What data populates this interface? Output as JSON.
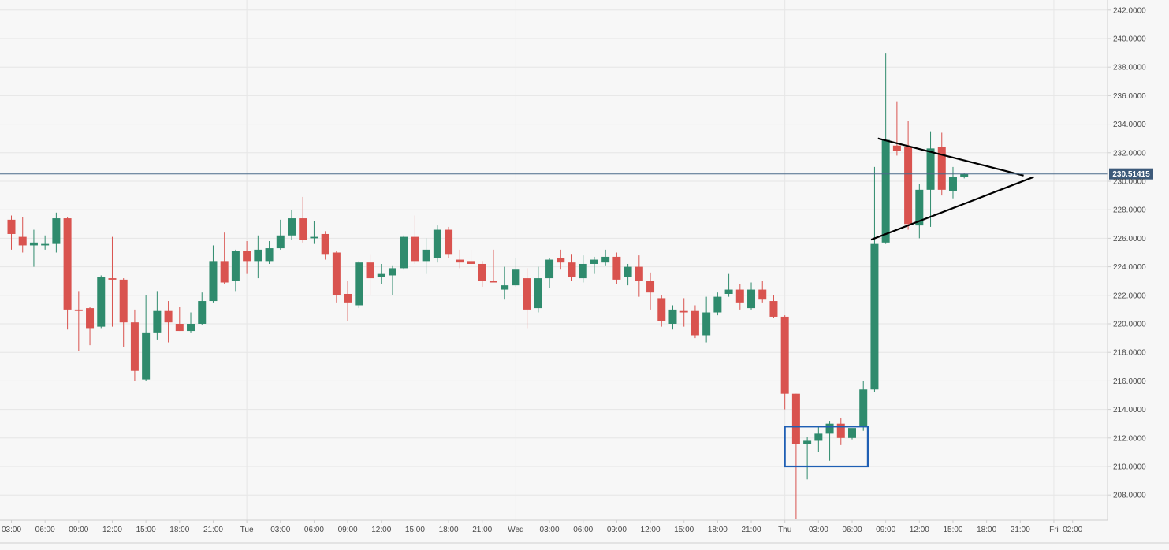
{
  "chart_data": {
    "type": "candlestick",
    "title": "",
    "xlabel": "",
    "ylabel": "",
    "ylim": [
      206.0,
      243.0
    ],
    "grid": true,
    "colors": {
      "up": "#2f8b6d",
      "down": "#d9534f",
      "background": "#f7f7f7",
      "grid": "#e6e6e6",
      "axis_text": "#4a4a4a",
      "price_line": "#4a6a8a",
      "price_label_bg": "#3d5a7a",
      "highlight_box": "#1f5fb4",
      "pattern_lines": "#000000"
    },
    "y_ticks": [
      "242.0000",
      "240.0000",
      "238.0000",
      "236.0000",
      "234.0000",
      "232.0000",
      "230.0000",
      "228.0000",
      "226.0000",
      "224.0000",
      "222.0000",
      "220.0000",
      "218.0000",
      "216.0000",
      "214.0000",
      "212.0000",
      "210.0000",
      "208.0000"
    ],
    "y_tick_values": [
      242,
      240,
      238,
      236,
      234,
      232,
      230,
      228,
      226,
      224,
      222,
      220,
      218,
      216,
      214,
      212,
      210,
      208
    ],
    "x_ticks": [
      {
        "label": "03:00",
        "idx": 0
      },
      {
        "label": "06:00",
        "idx": 3
      },
      {
        "label": "09:00",
        "idx": 6
      },
      {
        "label": "12:00",
        "idx": 9
      },
      {
        "label": "15:00",
        "idx": 12
      },
      {
        "label": "18:00",
        "idx": 15
      },
      {
        "label": "21:00",
        "idx": 18
      },
      {
        "label": "Tue",
        "idx": 21
      },
      {
        "label": "03:00",
        "idx": 24
      },
      {
        "label": "06:00",
        "idx": 27
      },
      {
        "label": "09:00",
        "idx": 30
      },
      {
        "label": "12:00",
        "idx": 33
      },
      {
        "label": "15:00",
        "idx": 36
      },
      {
        "label": "18:00",
        "idx": 39
      },
      {
        "label": "21:00",
        "idx": 42
      },
      {
        "label": "Wed",
        "idx": 45
      },
      {
        "label": "03:00",
        "idx": 48
      },
      {
        "label": "06:00",
        "idx": 51
      },
      {
        "label": "09:00",
        "idx": 54
      },
      {
        "label": "12:00",
        "idx": 57
      },
      {
        "label": "15:00",
        "idx": 60
      },
      {
        "label": "18:00",
        "idx": 63
      },
      {
        "label": "21:00",
        "idx": 66
      },
      {
        "label": "Thu",
        "idx": 69
      },
      {
        "label": "03:00",
        "idx": 72
      },
      {
        "label": "06:00",
        "idx": 75
      },
      {
        "label": "09:00",
        "idx": 78
      },
      {
        "label": "12:00",
        "idx": 81
      },
      {
        "label": "15:00",
        "idx": 84
      },
      {
        "label": "18:00",
        "idx": 87
      },
      {
        "label": "21:00",
        "idx": 90
      },
      {
        "label": "Fri",
        "idx": 93
      },
      {
        "label": "02:00",
        "idx": 94.67
      }
    ],
    "day_separators": [
      21,
      45,
      69,
      93
    ],
    "current_price": 230.51415,
    "current_price_label": "230.51415",
    "candles": [
      {
        "o": 227.3,
        "h": 227.6,
        "l": 225.2,
        "c": 226.3
      },
      {
        "o": 226.1,
        "h": 227.5,
        "l": 225.0,
        "c": 225.5
      },
      {
        "o": 225.5,
        "h": 226.6,
        "l": 224.0,
        "c": 225.7
      },
      {
        "o": 225.5,
        "h": 226.2,
        "l": 225.2,
        "c": 225.6
      },
      {
        "o": 225.6,
        "h": 227.8,
        "l": 225.0,
        "c": 227.4
      },
      {
        "o": 227.4,
        "h": 227.5,
        "l": 219.6,
        "c": 221.0
      },
      {
        "o": 221.0,
        "h": 222.3,
        "l": 218.1,
        "c": 220.9
      },
      {
        "o": 221.1,
        "h": 221.2,
        "l": 218.5,
        "c": 219.7
      },
      {
        "o": 219.8,
        "h": 223.4,
        "l": 219.7,
        "c": 223.3
      },
      {
        "o": 223.2,
        "h": 226.1,
        "l": 219.8,
        "c": 223.1
      },
      {
        "o": 223.1,
        "h": 223.2,
        "l": 218.4,
        "c": 220.1
      },
      {
        "o": 220.1,
        "h": 221.0,
        "l": 216.0,
        "c": 216.7
      },
      {
        "o": 216.1,
        "h": 222.0,
        "l": 216.0,
        "c": 219.4
      },
      {
        "o": 219.4,
        "h": 222.3,
        "l": 218.9,
        "c": 220.9
      },
      {
        "o": 220.9,
        "h": 221.6,
        "l": 218.7,
        "c": 220.1
      },
      {
        "o": 220.0,
        "h": 221.2,
        "l": 219.5,
        "c": 219.5
      },
      {
        "o": 219.5,
        "h": 220.8,
        "l": 219.4,
        "c": 220.0
      },
      {
        "o": 220.0,
        "h": 222.2,
        "l": 219.9,
        "c": 221.6
      },
      {
        "o": 221.6,
        "h": 225.5,
        "l": 221.5,
        "c": 224.4
      },
      {
        "o": 224.4,
        "h": 226.4,
        "l": 222.8,
        "c": 222.9
      },
      {
        "o": 223.0,
        "h": 225.2,
        "l": 222.3,
        "c": 225.1
      },
      {
        "o": 225.1,
        "h": 225.8,
        "l": 223.5,
        "c": 224.4
      },
      {
        "o": 224.4,
        "h": 226.2,
        "l": 223.2,
        "c": 225.2
      },
      {
        "o": 224.4,
        "h": 225.8,
        "l": 224.2,
        "c": 225.3
      },
      {
        "o": 225.3,
        "h": 227.3,
        "l": 225.2,
        "c": 226.2
      },
      {
        "o": 226.2,
        "h": 228.0,
        "l": 225.9,
        "c": 227.4
      },
      {
        "o": 227.4,
        "h": 228.9,
        "l": 225.7,
        "c": 225.9
      },
      {
        "o": 226.0,
        "h": 227.2,
        "l": 225.6,
        "c": 226.1
      },
      {
        "o": 226.3,
        "h": 226.5,
        "l": 224.5,
        "c": 224.9
      },
      {
        "o": 225.0,
        "h": 225.1,
        "l": 221.5,
        "c": 222.0
      },
      {
        "o": 222.1,
        "h": 223.0,
        "l": 220.2,
        "c": 221.5
      },
      {
        "o": 221.3,
        "h": 224.4,
        "l": 221.1,
        "c": 224.3
      },
      {
        "o": 224.3,
        "h": 224.9,
        "l": 222.0,
        "c": 223.2
      },
      {
        "o": 223.3,
        "h": 224.2,
        "l": 222.8,
        "c": 223.5
      },
      {
        "o": 223.4,
        "h": 224.1,
        "l": 222.0,
        "c": 223.9
      },
      {
        "o": 223.9,
        "h": 226.2,
        "l": 223.8,
        "c": 226.1
      },
      {
        "o": 226.1,
        "h": 227.6,
        "l": 224.2,
        "c": 224.4
      },
      {
        "o": 224.4,
        "h": 226.0,
        "l": 223.5,
        "c": 225.2
      },
      {
        "o": 224.6,
        "h": 226.9,
        "l": 224.3,
        "c": 226.6
      },
      {
        "o": 226.6,
        "h": 226.8,
        "l": 224.6,
        "c": 224.9
      },
      {
        "o": 224.5,
        "h": 225.2,
        "l": 223.9,
        "c": 224.3
      },
      {
        "o": 224.4,
        "h": 225.2,
        "l": 224.0,
        "c": 224.2
      },
      {
        "o": 224.2,
        "h": 224.4,
        "l": 222.6,
        "c": 223.0
      },
      {
        "o": 223.0,
        "h": 225.2,
        "l": 222.9,
        "c": 222.9
      },
      {
        "o": 222.4,
        "h": 224.0,
        "l": 221.7,
        "c": 222.7
      },
      {
        "o": 222.7,
        "h": 224.6,
        "l": 222.6,
        "c": 223.8
      },
      {
        "o": 223.2,
        "h": 223.9,
        "l": 219.7,
        "c": 221.0
      },
      {
        "o": 221.1,
        "h": 224.0,
        "l": 220.8,
        "c": 223.2
      },
      {
        "o": 223.2,
        "h": 224.6,
        "l": 222.5,
        "c": 224.5
      },
      {
        "o": 224.6,
        "h": 225.2,
        "l": 223.8,
        "c": 224.3
      },
      {
        "o": 224.3,
        "h": 224.9,
        "l": 223.0,
        "c": 223.3
      },
      {
        "o": 223.2,
        "h": 224.8,
        "l": 222.9,
        "c": 224.2
      },
      {
        "o": 224.2,
        "h": 224.7,
        "l": 223.5,
        "c": 224.5
      },
      {
        "o": 224.3,
        "h": 225.2,
        "l": 224.1,
        "c": 224.7
      },
      {
        "o": 224.7,
        "h": 225.0,
        "l": 222.8,
        "c": 223.1
      },
      {
        "o": 223.3,
        "h": 224.2,
        "l": 222.7,
        "c": 224.0
      },
      {
        "o": 224.0,
        "h": 224.8,
        "l": 221.9,
        "c": 223.0
      },
      {
        "o": 223.0,
        "h": 223.6,
        "l": 221.0,
        "c": 222.2
      },
      {
        "o": 221.8,
        "h": 222.0,
        "l": 219.8,
        "c": 220.2
      },
      {
        "o": 220.0,
        "h": 221.3,
        "l": 219.6,
        "c": 221.0
      },
      {
        "o": 220.9,
        "h": 221.8,
        "l": 219.8,
        "c": 220.8
      },
      {
        "o": 220.9,
        "h": 221.3,
        "l": 219.0,
        "c": 219.2
      },
      {
        "o": 219.2,
        "h": 221.9,
        "l": 218.7,
        "c": 220.8
      },
      {
        "o": 220.8,
        "h": 222.2,
        "l": 220.6,
        "c": 221.9
      },
      {
        "o": 222.1,
        "h": 223.5,
        "l": 221.9,
        "c": 222.4
      },
      {
        "o": 222.4,
        "h": 222.8,
        "l": 221.0,
        "c": 221.5
      },
      {
        "o": 221.1,
        "h": 222.9,
        "l": 221.0,
        "c": 222.4
      },
      {
        "o": 222.4,
        "h": 223.0,
        "l": 221.5,
        "c": 221.7
      },
      {
        "o": 221.6,
        "h": 222.0,
        "l": 220.4,
        "c": 220.5
      },
      {
        "o": 220.5,
        "h": 220.6,
        "l": 214.0,
        "c": 215.1
      },
      {
        "o": 215.1,
        "h": 215.1,
        "l": 206.3,
        "c": 211.6
      },
      {
        "o": 211.6,
        "h": 212.1,
        "l": 209.1,
        "c": 211.8
      },
      {
        "o": 211.8,
        "h": 212.8,
        "l": 211.0,
        "c": 212.3
      },
      {
        "o": 212.3,
        "h": 213.2,
        "l": 210.4,
        "c": 213.0
      },
      {
        "o": 213.0,
        "h": 213.4,
        "l": 211.5,
        "c": 212.0
      },
      {
        "o": 212.0,
        "h": 212.5,
        "l": 211.9,
        "c": 212.7
      },
      {
        "o": 212.8,
        "h": 216.0,
        "l": 212.5,
        "c": 215.4
      },
      {
        "o": 215.4,
        "h": 231.0,
        "l": 215.2,
        "c": 225.6
      },
      {
        "o": 225.7,
        "h": 239.0,
        "l": 225.6,
        "c": 232.9
      },
      {
        "o": 232.5,
        "h": 235.6,
        "l": 231.8,
        "c": 232.1
      },
      {
        "o": 232.4,
        "h": 234.2,
        "l": 226.6,
        "c": 227.0
      },
      {
        "o": 226.9,
        "h": 229.8,
        "l": 226.0,
        "c": 229.4
      },
      {
        "o": 229.4,
        "h": 233.5,
        "l": 226.8,
        "c": 232.3
      },
      {
        "o": 232.4,
        "h": 233.4,
        "l": 229.0,
        "c": 229.4
      },
      {
        "o": 229.3,
        "h": 231.0,
        "l": 228.8,
        "c": 230.3
      },
      {
        "o": 230.3,
        "h": 230.6,
        "l": 230.2,
        "c": 230.5
      }
    ],
    "annotations": {
      "box": {
        "idx_from": 69.0,
        "idx_to": 76.4,
        "y_from": 210.0,
        "y_to": 212.8
      },
      "upper_line": {
        "idx_from": 77.3,
        "y_from": 233.0,
        "idx_to": 90.3,
        "y_to": 230.4
      },
      "lower_line": {
        "idx_from": 76.7,
        "y_from": 225.9,
        "idx_to": 91.2,
        "y_to": 230.3
      }
    }
  }
}
